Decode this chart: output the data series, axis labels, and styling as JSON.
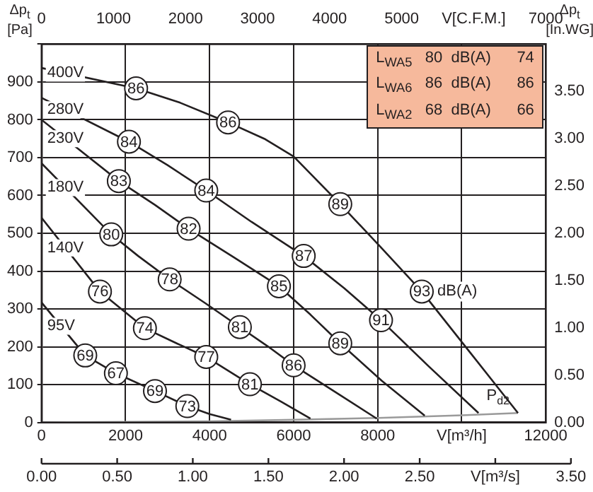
{
  "chart_data": {
    "type": "line",
    "ylabel": "Δp$_{t}$ [Pa]",
    "y2label": "Δp$_{t}$ [In.WG]",
    "xlim": [
      0,
      12000
    ],
    "xticks": [
      0,
      2000,
      4000,
      6000,
      8000,
      {
        "value": 10000,
        "label": "V[m³/h]"
      },
      12000
    ],
    "x2lim": [
      0,
      7000
    ],
    "x2ticks": [
      0,
      1000,
      2000,
      3000,
      4000,
      5000,
      {
        "value": 6000,
        "label": "V[C.F.M.]"
      },
      7000
    ],
    "ylim": [
      0,
      1000
    ],
    "yticks": [
      0,
      100,
      200,
      300,
      400,
      500,
      600,
      700,
      800,
      900,
      {
        "value": 1000,
        "label": null
      }
    ],
    "y2lim": [
      0,
      4
    ],
    "y2ticks": [
      {
        "value": 0,
        "label": "0.00"
      },
      {
        "value": 0.5,
        "label": "0.50"
      },
      {
        "value": 1,
        "label": "1.00"
      },
      {
        "value": 1.5,
        "label": "1.50"
      },
      {
        "value": 2,
        "label": "2.00"
      },
      {
        "value": 2.5,
        "label": "2.50"
      },
      {
        "value": 3,
        "label": "3.00"
      },
      {
        "value": 3.5,
        "label": "3.50"
      }
    ],
    "grid": true,
    "line_style": "solid",
    "series": [
      {
        "name": "400V",
        "color": "#231f20",
        "x": [
          0,
          2250,
          3300,
          4440,
          5300,
          6000,
          7110,
          8100,
          9050,
          10200,
          11340
        ],
        "values": [
          937,
          883,
          845,
          793,
          750,
          703,
          577,
          460,
          346,
          185,
          25
        ]
      },
      {
        "name": "280V",
        "color": "#231f20",
        "x": [
          0,
          2080,
          3000,
          3920,
          5000,
          6240,
          7200,
          8080,
          9200,
          10400
        ],
        "values": [
          858,
          742,
          680,
          613,
          530,
          440,
          355,
          270,
          150,
          25
        ]
      },
      {
        "name": "230V",
        "color": "#231f20",
        "x": [
          0,
          1840,
          2700,
          3500,
          4600,
          5650,
          6400,
          7110,
          8100,
          9120
        ],
        "values": [
          800,
          638,
          575,
          512,
          435,
          360,
          285,
          209,
          110,
          18
        ]
      },
      {
        "name": "180V",
        "color": "#231f20",
        "x": [
          0,
          1660,
          2300,
          3050,
          3900,
          4720,
          5400,
          6000,
          7000,
          7980
        ],
        "values": [
          685,
          497,
          440,
          378,
          315,
          252,
          200,
          151,
          80,
          10
        ]
      },
      {
        "name": "140V",
        "color": "#231f20",
        "x": [
          0,
          1390,
          2460,
          3200,
          3920,
          4960,
          5700,
          6400
        ],
        "values": [
          541,
          346,
          249,
          210,
          173,
          101,
          55,
          10
        ]
      },
      {
        "name": "95V",
        "color": "#231f20",
        "x": [
          0,
          1040,
          1770,
          2700,
          3470,
          4000,
          4510
        ],
        "values": [
          317,
          177,
          130,
          83,
          43,
          22,
          7
        ]
      },
      {
        "name": "P$_{d2}$",
        "color": "#9a9a9a",
        "x": [
          0,
          4000,
          6000,
          8000,
          10000,
          11340
        ],
        "values": [
          0,
          3,
          7,
          12,
          19,
          25
        ]
      }
    ],
    "annotations": [
      "L$_{WA5}$   80  dB(A)      74",
      "L$_{WA6}$   86  dB(A)      86",
      "L$_{WA2}$   68  dB(A)      66",
      {
        "text": "86",
        "x": 2250,
        "y": 883
      },
      {
        "text": "86",
        "x": 4440,
        "y": 793
      },
      {
        "text": "89",
        "x": 7110,
        "y": 577
      },
      {
        "text": "93 dB(A)",
        "x": 9050,
        "y": 346
      },
      {
        "text": "84",
        "x": 2080,
        "y": 742
      },
      {
        "text": "84",
        "x": 3920,
        "y": 613
      },
      {
        "text": "87",
        "x": 6240,
        "y": 440
      },
      {
        "text": "91",
        "x": 8080,
        "y": 270
      },
      {
        "text": "83",
        "x": 1840,
        "y": 638
      },
      {
        "text": "82",
        "x": 3500,
        "y": 512
      },
      {
        "text": "85",
        "x": 5650,
        "y": 360
      },
      {
        "text": "89",
        "x": 7110,
        "y": 209
      },
      {
        "text": "80",
        "x": 1660,
        "y": 497
      },
      {
        "text": "78",
        "x": 3050,
        "y": 378
      },
      {
        "text": "81",
        "x": 4720,
        "y": 252
      },
      {
        "text": "86",
        "x": 6000,
        "y": 151
      },
      {
        "text": "76",
        "x": 1390,
        "y": 346
      },
      {
        "text": "74",
        "x": 2460,
        "y": 249
      },
      {
        "text": "77",
        "x": 3920,
        "y": 173
      },
      {
        "text": "81",
        "x": 4960,
        "y": 101
      },
      {
        "text": "69",
        "x": 1040,
        "y": 177
      },
      {
        "text": "67",
        "x": 1770,
        "y": 130
      },
      {
        "text": "69",
        "x": 2700,
        "y": 83
      },
      {
        "text": "73",
        "x": 3470,
        "y": 43
      },
      "0.00  0.50  1.00  1.50  2.00  2.50  V[m³/s]  3.50"
    ]
  }
}
